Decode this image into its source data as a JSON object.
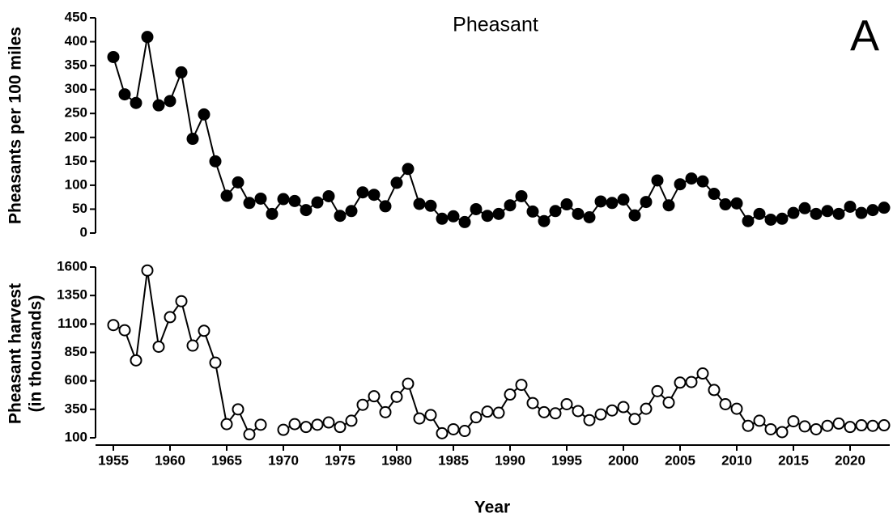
{
  "chart_data": [
    {
      "type": "line",
      "title": "Pheasant",
      "annotation": "A",
      "ylabel": "Pheasants per 100 miles",
      "x": [
        1955,
        1956,
        1957,
        1958,
        1959,
        1960,
        1961,
        1962,
        1963,
        1964,
        1965,
        1966,
        1967,
        1968,
        1969,
        1970,
        1971,
        1972,
        1973,
        1974,
        1975,
        1976,
        1977,
        1978,
        1979,
        1980,
        1981,
        1982,
        1983,
        1984,
        1985,
        1986,
        1987,
        1988,
        1989,
        1990,
        1991,
        1992,
        1993,
        1994,
        1995,
        1996,
        1997,
        1998,
        1999,
        2000,
        2001,
        2002,
        2003,
        2004,
        2005,
        2006,
        2007,
        2008,
        2009,
        2010,
        2011,
        2012,
        2013,
        2014,
        2015,
        2016,
        2017,
        2018,
        2019,
        2020,
        2021,
        2022,
        2023
      ],
      "series": [
        {
          "color": "#000000",
          "marker_fill": "#000000",
          "values": [
            368,
            290,
            272,
            410,
            267,
            276,
            336,
            197,
            248,
            150,
            78,
            106,
            63,
            72,
            40,
            71,
            67,
            48,
            64,
            77,
            36,
            46,
            85,
            80,
            56,
            105,
            134,
            61,
            57,
            30,
            35,
            23,
            50,
            36,
            40,
            58,
            77,
            45,
            25,
            46,
            60,
            40,
            33,
            66,
            63,
            70,
            37,
            65,
            110,
            58,
            102,
            114,
            108,
            82,
            60,
            62,
            25,
            40,
            28,
            30,
            42,
            52,
            40,
            46,
            40,
            55,
            42,
            48,
            53
          ]
        }
      ],
      "xlim": [
        1954,
        2023.5
      ],
      "ylim": [
        0,
        450
      ],
      "yticks": [
        0,
        50,
        100,
        150,
        200,
        250,
        300,
        350,
        400,
        450
      ]
    },
    {
      "type": "line",
      "ylabel": [
        "Pheasant harvest",
        "(in thousands)"
      ],
      "xlabel": "Year",
      "x": [
        1955,
        1956,
        1957,
        1958,
        1959,
        1960,
        1961,
        1962,
        1963,
        1964,
        1965,
        1966,
        1967,
        1968,
        1969,
        1970,
        1971,
        1972,
        1973,
        1974,
        1975,
        1976,
        1977,
        1978,
        1979,
        1980,
        1981,
        1982,
        1983,
        1984,
        1985,
        1986,
        1987,
        1988,
        1989,
        1990,
        1991,
        1992,
        1993,
        1994,
        1995,
        1996,
        1997,
        1998,
        1999,
        2000,
        2001,
        2002,
        2003,
        2004,
        2005,
        2006,
        2007,
        2008,
        2009,
        2010,
        2011,
        2012,
        2013,
        2014,
        2015,
        2016,
        2017,
        2018,
        2019,
        2020,
        2021,
        2022,
        2023
      ],
      "series": [
        {
          "color": "#000000",
          "marker_fill": "#ffffff",
          "values": [
            1090,
            1045,
            780,
            1570,
            900,
            1160,
            1300,
            910,
            1040,
            760,
            220,
            350,
            130,
            215,
            null,
            170,
            220,
            195,
            215,
            235,
            195,
            250,
            390,
            465,
            325,
            460,
            575,
            270,
            300,
            140,
            175,
            160,
            280,
            330,
            320,
            480,
            565,
            405,
            325,
            315,
            395,
            335,
            255,
            305,
            340,
            370,
            265,
            355,
            510,
            410,
            585,
            590,
            665,
            520,
            395,
            355,
            205,
            250,
            175,
            150,
            245,
            200,
            175,
            205,
            225,
            195,
            210,
            205,
            210
          ]
        }
      ],
      "xlim": [
        1954,
        2023.5
      ],
      "xticks": [
        1955,
        1960,
        1965,
        1970,
        1975,
        1980,
        1985,
        1990,
        1995,
        2000,
        2005,
        2010,
        2015,
        2020
      ],
      "ylim": [
        100,
        1600
      ],
      "yticks": [
        100,
        350,
        600,
        850,
        1100,
        1350,
        1600
      ]
    }
  ]
}
